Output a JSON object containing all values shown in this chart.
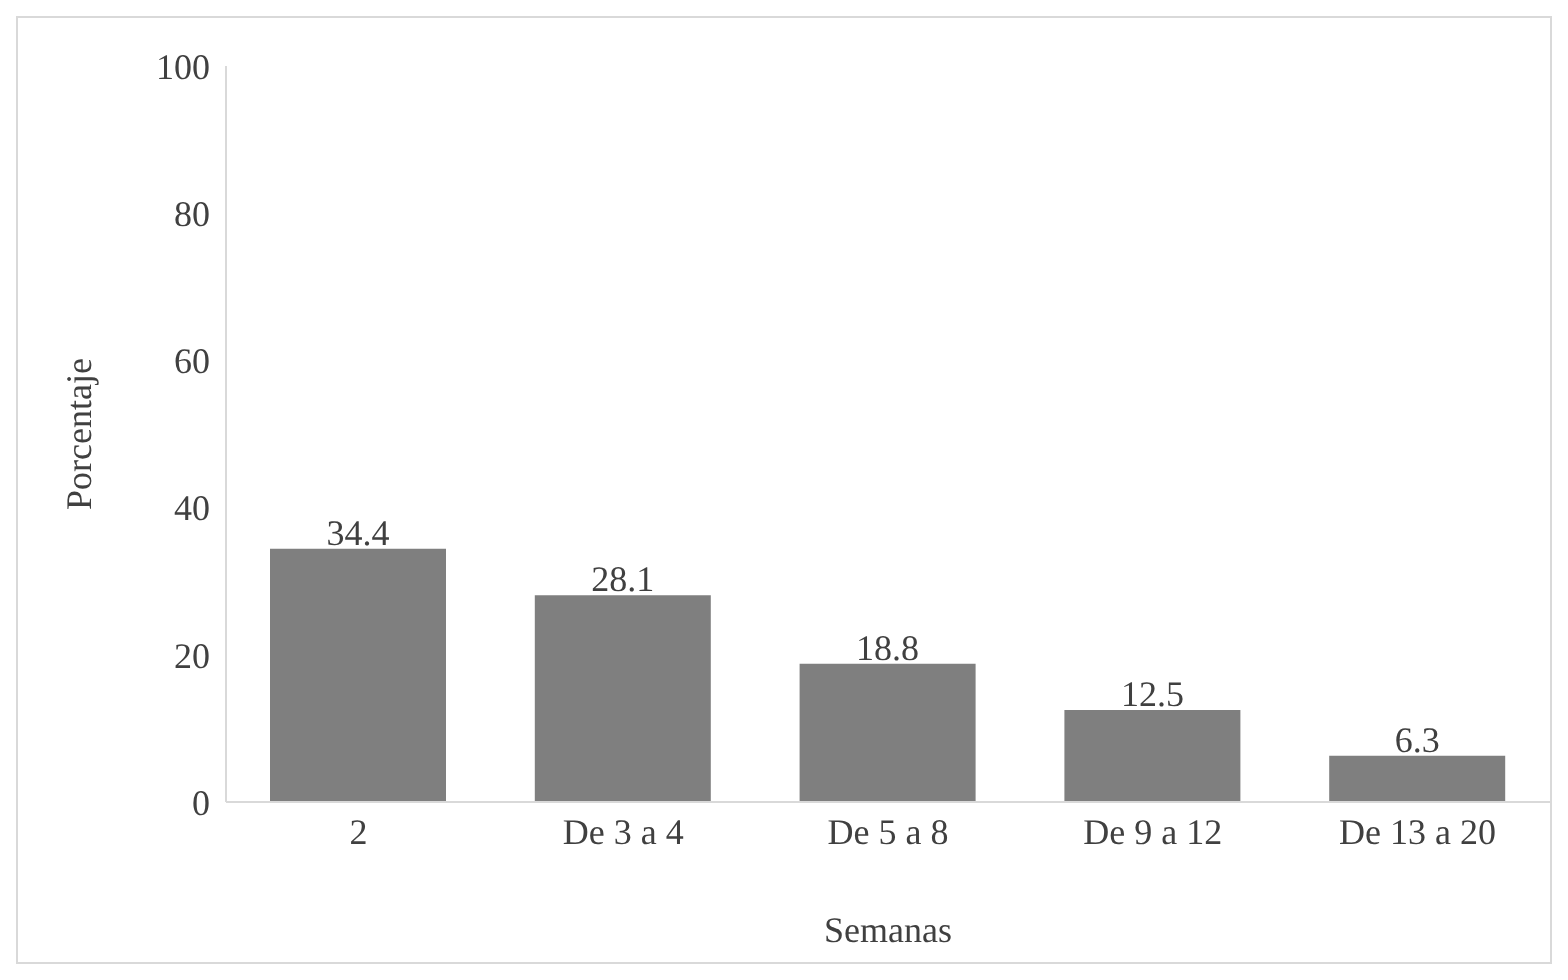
{
  "chart_data": {
    "type": "bar",
    "xlabel": "Semanas",
    "ylabel": "Porcentaje",
    "categories": [
      "2",
      "De 3 a 4",
      "De 5 a 8",
      "De 9 a 12",
      "De 13 a 20"
    ],
    "values": [
      34.4,
      28.1,
      18.8,
      12.5,
      6.3
    ],
    "color": "#7f7f7f",
    "ylim": [
      0,
      100
    ],
    "yticks": [
      0,
      20,
      40,
      60,
      80,
      100
    ],
    "grid": false,
    "data_labels": true
  }
}
